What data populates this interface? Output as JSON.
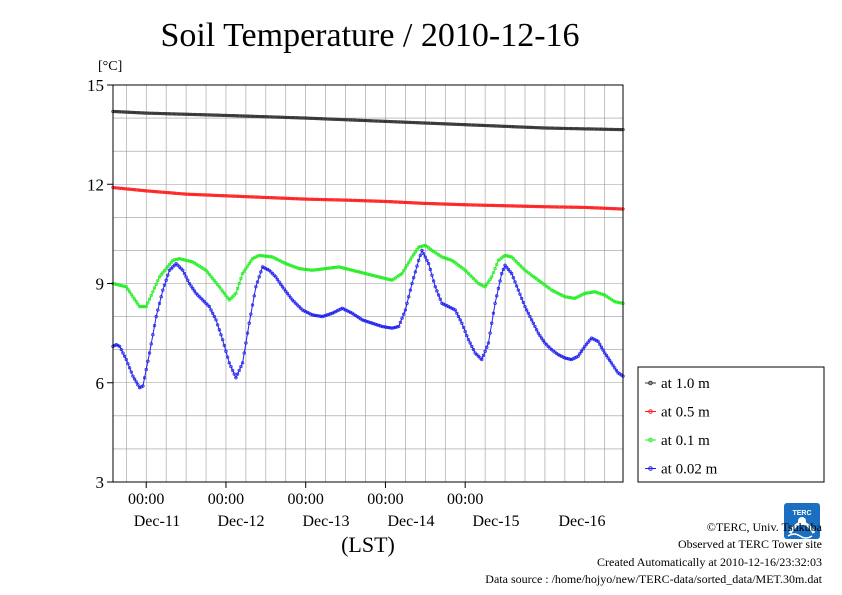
{
  "chart_data": {
    "type": "line",
    "title": "Soil Temperature / 2010-12-16",
    "xlabel": "(LST)",
    "ylabel": "[°C]",
    "ylim": [
      3,
      15
    ],
    "yticks": [
      "3",
      "6",
      "9",
      "12",
      "15"
    ],
    "xlim": [
      "2010-12-10 14:00",
      "2010-12-16 23:30"
    ],
    "xticks": [
      {
        "time": "2010-12-11 00:00",
        "label": "00:00",
        "day": "Dec-11"
      },
      {
        "time": "2010-12-12 00:00",
        "label": "00:00",
        "day": "Dec-12"
      },
      {
        "time": "2010-12-13 00:00",
        "label": "00:00",
        "day": "Dec-13"
      },
      {
        "time": "2010-12-14 00:00",
        "label": "00:00",
        "day": "Dec-14"
      },
      {
        "time": "2010-12-15 00:00",
        "label": "00:00",
        "day": "Dec-15"
      },
      {
        "time": "",
        "label": "",
        "day": "Dec-16"
      }
    ],
    "grid": true,
    "legend_position": "right-bottom",
    "x_hours_note": "x values are hours since 2010-12-10 00:00 LST",
    "series": [
      {
        "name": "at 1.0 m",
        "color": "#333333",
        "points": [
          [
            14,
            14.2
          ],
          [
            24,
            14.15
          ],
          [
            48,
            14.08
          ],
          [
            72,
            14.0
          ],
          [
            96,
            13.9
          ],
          [
            120,
            13.8
          ],
          [
            144,
            13.7
          ],
          [
            167.5,
            13.65
          ]
        ]
      },
      {
        "name": "at 0.5 m",
        "color": "#ff2020",
        "points": [
          [
            14,
            11.9
          ],
          [
            24,
            11.8
          ],
          [
            36,
            11.7
          ],
          [
            48,
            11.65
          ],
          [
            60,
            11.6
          ],
          [
            72,
            11.55
          ],
          [
            84,
            11.52
          ],
          [
            96,
            11.48
          ],
          [
            108,
            11.42
          ],
          [
            120,
            11.38
          ],
          [
            132,
            11.35
          ],
          [
            144,
            11.32
          ],
          [
            156,
            11.3
          ],
          [
            167.5,
            11.25
          ]
        ]
      },
      {
        "name": "at 0.1 m",
        "color": "#22ee22",
        "points": [
          [
            14,
            9.0
          ],
          [
            18,
            8.9
          ],
          [
            22,
            8.3
          ],
          [
            24,
            8.3
          ],
          [
            28,
            9.2
          ],
          [
            32,
            9.7
          ],
          [
            34,
            9.75
          ],
          [
            38,
            9.65
          ],
          [
            42,
            9.4
          ],
          [
            46,
            8.9
          ],
          [
            49,
            8.5
          ],
          [
            51,
            8.7
          ],
          [
            53,
            9.3
          ],
          [
            56,
            9.75
          ],
          [
            58,
            9.85
          ],
          [
            62,
            9.8
          ],
          [
            66,
            9.6
          ],
          [
            70,
            9.45
          ],
          [
            74,
            9.4
          ],
          [
            78,
            9.45
          ],
          [
            82,
            9.5
          ],
          [
            86,
            9.4
          ],
          [
            90,
            9.3
          ],
          [
            94,
            9.2
          ],
          [
            98,
            9.1
          ],
          [
            101,
            9.3
          ],
          [
            104,
            9.8
          ],
          [
            106,
            10.1
          ],
          [
            108,
            10.15
          ],
          [
            110,
            10.0
          ],
          [
            113,
            9.8
          ],
          [
            116,
            9.7
          ],
          [
            120,
            9.4
          ],
          [
            124,
            9.0
          ],
          [
            126,
            8.9
          ],
          [
            128,
            9.2
          ],
          [
            130,
            9.7
          ],
          [
            132,
            9.85
          ],
          [
            134,
            9.8
          ],
          [
            138,
            9.4
          ],
          [
            142,
            9.1
          ],
          [
            146,
            8.8
          ],
          [
            150,
            8.6
          ],
          [
            153,
            8.55
          ],
          [
            156,
            8.7
          ],
          [
            159,
            8.75
          ],
          [
            162,
            8.65
          ],
          [
            165,
            8.45
          ],
          [
            167.5,
            8.4
          ]
        ]
      },
      {
        "name": "at 0.02 m",
        "color": "#2020ee",
        "points": [
          [
            14,
            7.1
          ],
          [
            15,
            7.15
          ],
          [
            16,
            7.1
          ],
          [
            18,
            6.7
          ],
          [
            20,
            6.2
          ],
          [
            22,
            5.85
          ],
          [
            23,
            5.9
          ],
          [
            25,
            6.9
          ],
          [
            27,
            8.0
          ],
          [
            29,
            8.8
          ],
          [
            31,
            9.4
          ],
          [
            33,
            9.6
          ],
          [
            35,
            9.4
          ],
          [
            37,
            9.0
          ],
          [
            39,
            8.7
          ],
          [
            41,
            8.5
          ],
          [
            43,
            8.3
          ],
          [
            45,
            7.9
          ],
          [
            47,
            7.3
          ],
          [
            49,
            6.6
          ],
          [
            51,
            6.15
          ],
          [
            53,
            6.6
          ],
          [
            55,
            7.8
          ],
          [
            57,
            8.9
          ],
          [
            59,
            9.5
          ],
          [
            61,
            9.4
          ],
          [
            63,
            9.2
          ],
          [
            65,
            8.9
          ],
          [
            68,
            8.5
          ],
          [
            71,
            8.2
          ],
          [
            74,
            8.05
          ],
          [
            77,
            8.0
          ],
          [
            80,
            8.1
          ],
          [
            83,
            8.25
          ],
          [
            86,
            8.1
          ],
          [
            89,
            7.9
          ],
          [
            92,
            7.8
          ],
          [
            95,
            7.7
          ],
          [
            98,
            7.65
          ],
          [
            100,
            7.7
          ],
          [
            102,
            8.2
          ],
          [
            104,
            9.0
          ],
          [
            106,
            9.7
          ],
          [
            107,
            10.0
          ],
          [
            109,
            9.6
          ],
          [
            111,
            8.9
          ],
          [
            113,
            8.4
          ],
          [
            115,
            8.3
          ],
          [
            117,
            8.2
          ],
          [
            119,
            7.8
          ],
          [
            121,
            7.3
          ],
          [
            123,
            6.9
          ],
          [
            125,
            6.7
          ],
          [
            127,
            7.2
          ],
          [
            129,
            8.4
          ],
          [
            131,
            9.3
          ],
          [
            132,
            9.55
          ],
          [
            134,
            9.3
          ],
          [
            136,
            8.8
          ],
          [
            138,
            8.3
          ],
          [
            140,
            7.9
          ],
          [
            142,
            7.5
          ],
          [
            144,
            7.2
          ],
          [
            146,
            7.0
          ],
          [
            148,
            6.85
          ],
          [
            150,
            6.75
          ],
          [
            152,
            6.7
          ],
          [
            154,
            6.8
          ],
          [
            156,
            7.1
          ],
          [
            158,
            7.35
          ],
          [
            160,
            7.25
          ],
          [
            162,
            6.9
          ],
          [
            164,
            6.6
          ],
          [
            166,
            6.3
          ],
          [
            167.5,
            6.2
          ]
        ]
      }
    ]
  },
  "legend": {
    "items": [
      {
        "label": "at 1.0 m",
        "color": "#333333"
      },
      {
        "label": "at 0.5 m",
        "color": "#ff2020"
      },
      {
        "label": "at 0.1 m",
        "color": "#22ee22"
      },
      {
        "label": "at 0.02 m",
        "color": "#2020ee"
      }
    ]
  },
  "logo": {
    "text": "TERC",
    "color": "#1a6fc0"
  },
  "footer": {
    "copyright": "©TERC, Univ. Tsukuba",
    "observed": "Observed at TERC Tower site",
    "created": "Created Automatically at 2010-12-16/23:32:03",
    "source": "Data source : /home/hojyo/new/TERC-data/sorted_data/MET.30m.dat"
  }
}
